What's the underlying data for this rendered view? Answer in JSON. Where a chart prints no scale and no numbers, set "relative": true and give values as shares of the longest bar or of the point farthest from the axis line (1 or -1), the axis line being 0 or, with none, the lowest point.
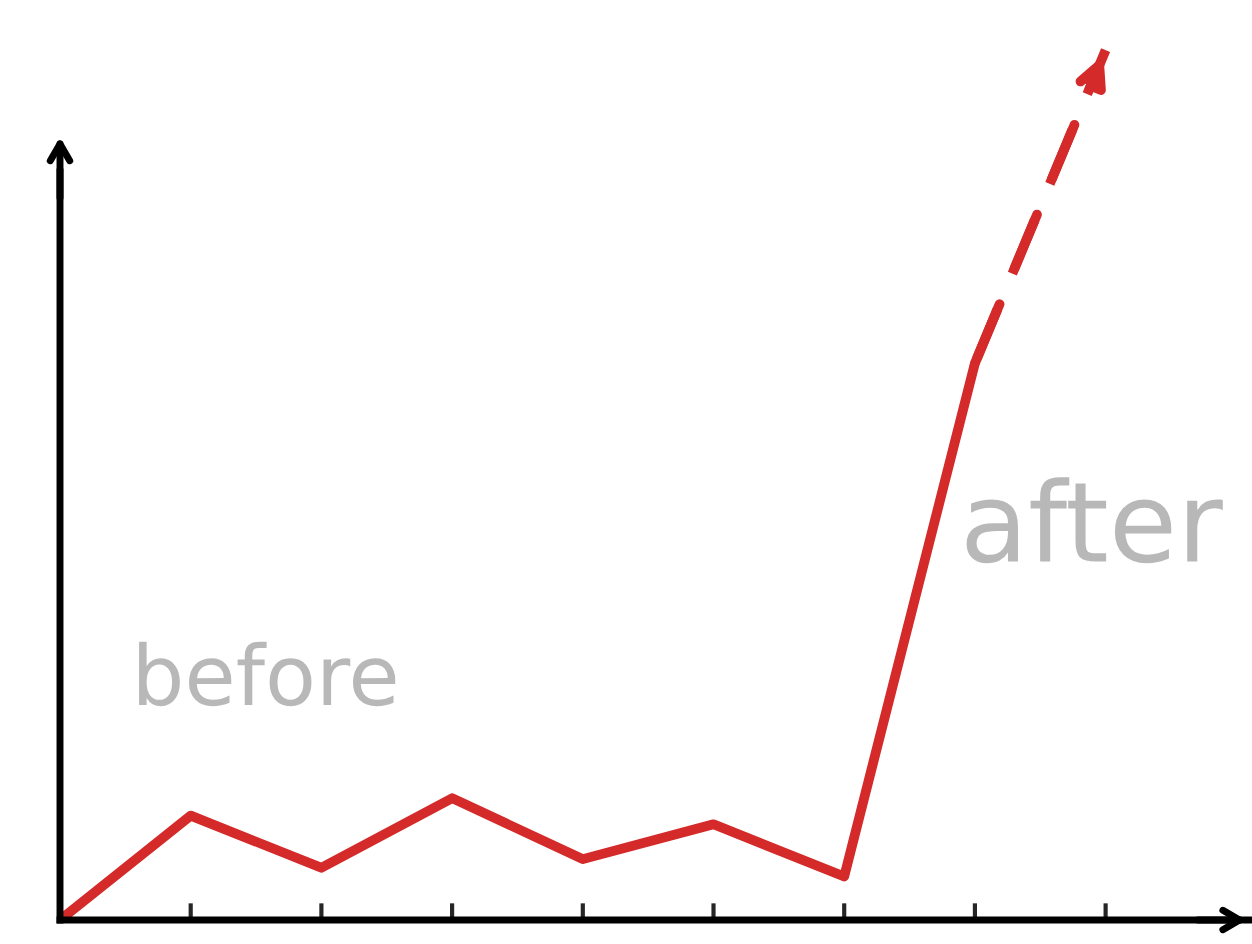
{
  "chart_data": {
    "type": "line",
    "relative": true,
    "categories": [
      null,
      null,
      null,
      null,
      null,
      null,
      null,
      null,
      null
    ],
    "series": [
      {
        "color": "#d42a2a",
        "line_style": "solid",
        "values": [
          0,
          0.12,
          0.06,
          0.14,
          0.07,
          0.11,
          0.05,
          0.64,
          null
        ]
      },
      {
        "color": "#d42a2a",
        "line_style": "dashed",
        "values": [
          null,
          null,
          null,
          null,
          null,
          null,
          null,
          0.64,
          1.0
        ]
      }
    ],
    "annotations": [
      "before",
      "after"
    ],
    "grid": false,
    "legend": false
  }
}
